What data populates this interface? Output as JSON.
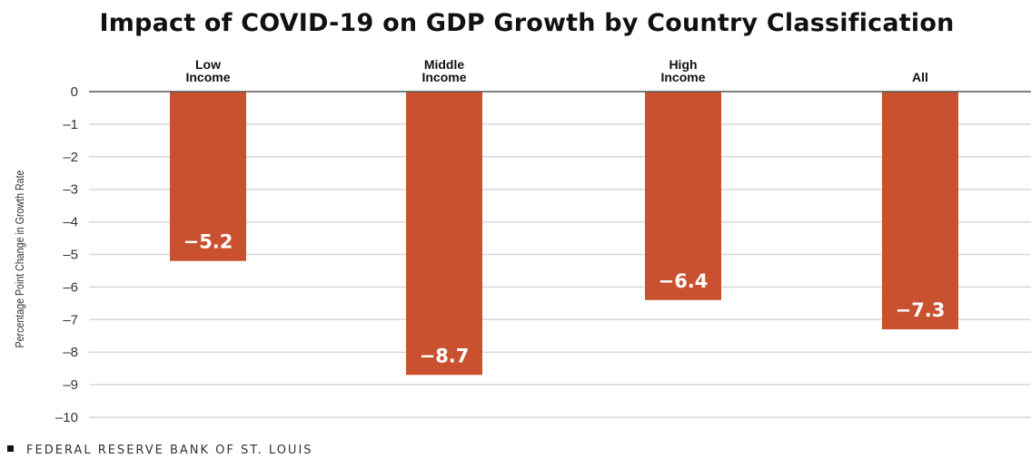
{
  "chart_data": {
    "type": "bar",
    "title": "Impact of COVID-19 on GDP Growth by Country Classification",
    "ylabel": "Percentage Point Change in Growth Rate",
    "xlabel": "",
    "categories": [
      [
        "Low",
        "Income"
      ],
      [
        "Middle",
        "Income"
      ],
      [
        "High",
        "Income"
      ],
      [
        "All"
      ]
    ],
    "values": [
      -5.2,
      -8.7,
      -6.4,
      -7.3
    ],
    "data_labels": [
      "−5.2",
      "−8.7",
      "−6.4",
      "−7.3"
    ],
    "ylim": [
      -10,
      0
    ],
    "yticks": [
      0,
      -1,
      -2,
      -3,
      -4,
      -5,
      -6,
      -7,
      -8,
      -9,
      -10
    ],
    "ytick_labels": [
      "0",
      "–1",
      "–2",
      "–3",
      "–4",
      "–5",
      "–6",
      "–7",
      "–8",
      "–9",
      "–10"
    ],
    "grid": true,
    "legend": "none",
    "colors": {
      "bar": "#c9512f",
      "grid": "#d8d8d8",
      "zero_line": "#555555"
    }
  },
  "source": {
    "text": "FEDERAL RESERVE BANK OF ST. LOUIS"
  }
}
